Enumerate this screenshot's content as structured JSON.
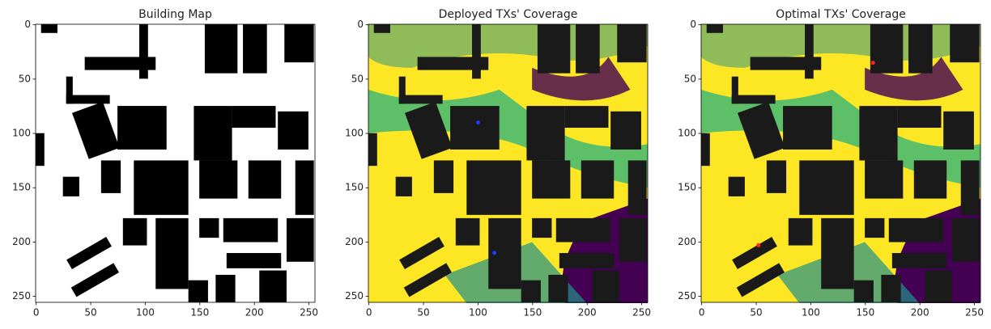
{
  "chart_data": [
    {
      "type": "image",
      "title": "Building Map",
      "background": "#ffffff",
      "building_color": "#000000",
      "xlim": [
        -0.5,
        255.5
      ],
      "ylim": [
        255.5,
        -0.5
      ],
      "xticks": [
        0,
        50,
        100,
        150,
        200,
        250
      ],
      "yticks": [
        0,
        50,
        100,
        150,
        200,
        250
      ]
    },
    {
      "type": "image",
      "title": "Deployed TXs' Coverage",
      "background": "#fde725",
      "building_color": "#1a1a1a",
      "xlim": [
        -0.5,
        255.5
      ],
      "ylim": [
        255.5,
        -0.5
      ],
      "xticks": [
        0,
        50,
        100,
        150,
        200,
        250
      ],
      "yticks": [
        0,
        50,
        100,
        150,
        200,
        250
      ]
    },
    {
      "type": "image",
      "title": "Optimal TXs' Coverage",
      "background": "#fde725",
      "building_color": "#1a1a1a",
      "xlim": [
        -0.5,
        255.5
      ],
      "ylim": [
        255.5,
        -0.5
      ],
      "xticks": [
        0,
        50,
        100,
        150,
        200,
        250
      ],
      "yticks": [
        0,
        50,
        100,
        150,
        200,
        250
      ]
    }
  ]
}
